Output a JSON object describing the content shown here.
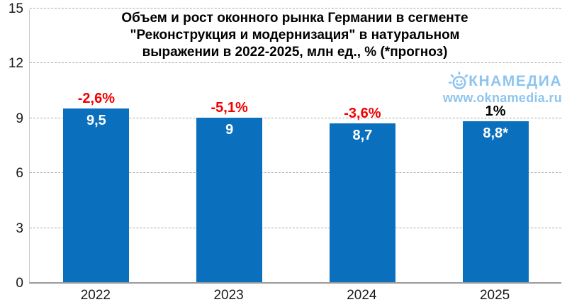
{
  "chart_data": {
    "type": "bar",
    "title": "Объем и рост оконного рынка Германии в сегменте \"Реконструкция и модернизация\" в натуральном выражении в 2022-2025, млн ед., % (*прогноз)",
    "title_lines": [
      "Объем и рост оконного рынка Германии в сегменте",
      "\"Реконструкция и модернизация\" в натуральном",
      "выражении в 2022-2025, млн ед., % (*прогноз)"
    ],
    "categories": [
      "2022",
      "2023",
      "2024",
      "2025"
    ],
    "values": [
      9.5,
      9,
      8.7,
      8.8
    ],
    "value_labels": [
      "9,5",
      "9",
      "8,7",
      "8,8*"
    ],
    "growth_labels": [
      "-2,6%",
      "-5,1%",
      "-3,6%",
      "1%"
    ],
    "growth_label_colors": [
      "#f40000",
      "#f40000",
      "#f40000",
      "#000000"
    ],
    "y_ticks": [
      0,
      3,
      6,
      9,
      12,
      15
    ],
    "ylim": [
      0,
      15
    ],
    "xlabel": "",
    "ylabel": "",
    "grid": true,
    "legend": "none",
    "bar_color": "#0a70bd",
    "value_label_color": "#ffffff"
  },
  "branding": {
    "name": "ОКНАМЕДИА",
    "icon": "sun-smiley-icon",
    "logo_text_after_icon": "КНАМЕДИА",
    "url": "www.oknamedia.ru",
    "color": "#8ec5ef"
  }
}
